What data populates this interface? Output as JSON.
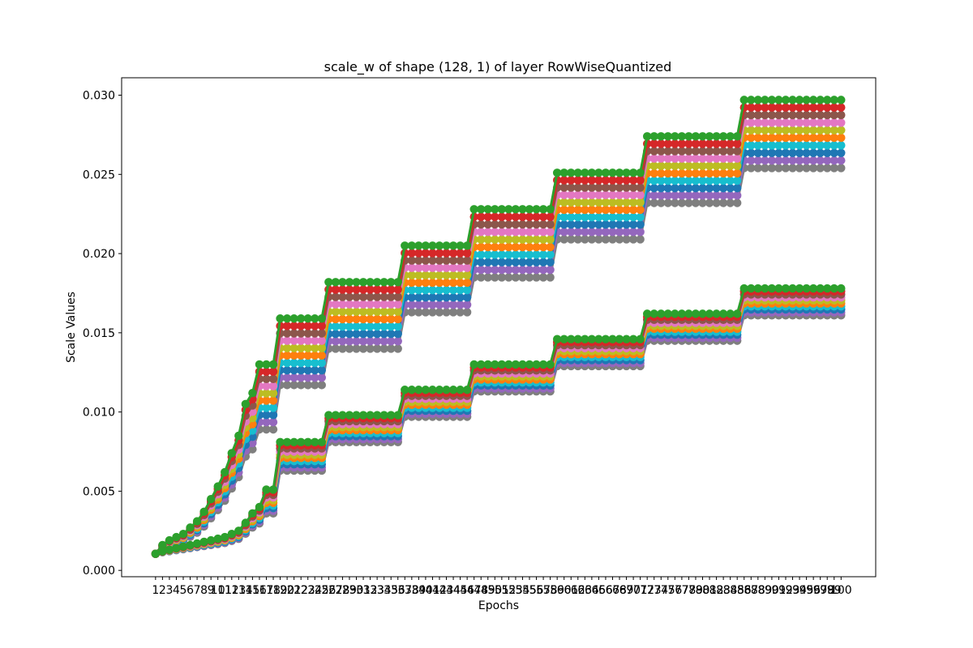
{
  "chart_data": {
    "type": "line",
    "title": "scale_w of shape (128, 1) of layer RowWiseQuantized",
    "xlabel": "Epochs",
    "ylabel": "Scale Values",
    "x": [
      1,
      2,
      3,
      4,
      5,
      6,
      7,
      8,
      9,
      10,
      11,
      12,
      13,
      14,
      15,
      16,
      17,
      18,
      19,
      20,
      21,
      22,
      23,
      24,
      25,
      26,
      27,
      28,
      29,
      30,
      31,
      32,
      33,
      34,
      35,
      36,
      37,
      38,
      39,
      40,
      41,
      42,
      43,
      44,
      45,
      46,
      47,
      48,
      49,
      50,
      51,
      52,
      53,
      54,
      55,
      56,
      57,
      58,
      59,
      60,
      61,
      62,
      63,
      64,
      65,
      66,
      67,
      68,
      69,
      70,
      71,
      72,
      73,
      74,
      75,
      76,
      77,
      78,
      79,
      80,
      81,
      82,
      83,
      84,
      85,
      86,
      87,
      88,
      89,
      90,
      91,
      92,
      93,
      94,
      95,
      96,
      97,
      98,
      99,
      100
    ],
    "ylim": [
      -0.0004,
      0.0311
    ],
    "xlim": [
      -3.9,
      105
    ],
    "yticks": [
      "0.000",
      "0.005",
      "0.010",
      "0.015",
      "0.020",
      "0.025",
      "0.030"
    ],
    "marker": "circle",
    "legend": "none",
    "grid": false,
    "palette": [
      "#1f77b4",
      "#ff7f0e",
      "#2ca02c",
      "#d62728",
      "#9467bd",
      "#8c564b",
      "#e377c2",
      "#7f7f7f",
      "#bcbd22",
      "#17becf"
    ],
    "groups": [
      {
        "name": "upper",
        "start": 0.00105,
        "early": [
          0.00105,
          0.0016,
          0.0019,
          0.0021,
          0.0023,
          0.0027,
          0.0031,
          0.0037,
          0.0045,
          0.0053,
          0.0062,
          0.0074,
          0.0085,
          0.0105,
          0.0112,
          0.012
        ],
        "plateaus": [
          {
            "from": 16,
            "to": 18,
            "top": 0.013,
            "bottom": 0.0089
          },
          {
            "from": 19,
            "to": 25,
            "top": 0.0159,
            "bottom": 0.0117
          },
          {
            "from": 26,
            "to": 36,
            "top": 0.0182,
            "bottom": 0.014
          },
          {
            "from": 37,
            "to": 46,
            "top": 0.0205,
            "bottom": 0.0163
          },
          {
            "from": 47,
            "to": 58,
            "top": 0.0228,
            "bottom": 0.0185
          },
          {
            "from": 59,
            "to": 71,
            "top": 0.0251,
            "bottom": 0.0209
          },
          {
            "from": 72,
            "to": 85,
            "top": 0.0274,
            "bottom": 0.0232
          },
          {
            "from": 86,
            "to": 100,
            "top": 0.0297,
            "bottom": 0.0254
          }
        ]
      },
      {
        "name": "lower",
        "start": 0.00105,
        "early": [
          0.00105,
          0.0012,
          0.0013,
          0.0014,
          0.0015,
          0.0016,
          0.0017,
          0.0018,
          0.0019,
          0.002,
          0.0021,
          0.0023,
          0.0025,
          0.003,
          0.0036,
          0.004,
          0.0044
        ],
        "plateaus": [
          {
            "from": 17,
            "to": 18,
            "top": 0.0051,
            "bottom": 0.0036
          },
          {
            "from": 19,
            "to": 25,
            "top": 0.0081,
            "bottom": 0.0063
          },
          {
            "from": 26,
            "to": 36,
            "top": 0.0098,
            "bottom": 0.0081
          },
          {
            "from": 37,
            "to": 46,
            "top": 0.0114,
            "bottom": 0.0097
          },
          {
            "from": 47,
            "to": 58,
            "top": 0.013,
            "bottom": 0.0113
          },
          {
            "from": 59,
            "to": 71,
            "top": 0.0146,
            "bottom": 0.0129
          },
          {
            "from": 72,
            "to": 85,
            "top": 0.0162,
            "bottom": 0.0145
          },
          {
            "from": 86,
            "to": 100,
            "top": 0.0178,
            "bottom": 0.0161
          }
        ]
      }
    ]
  }
}
